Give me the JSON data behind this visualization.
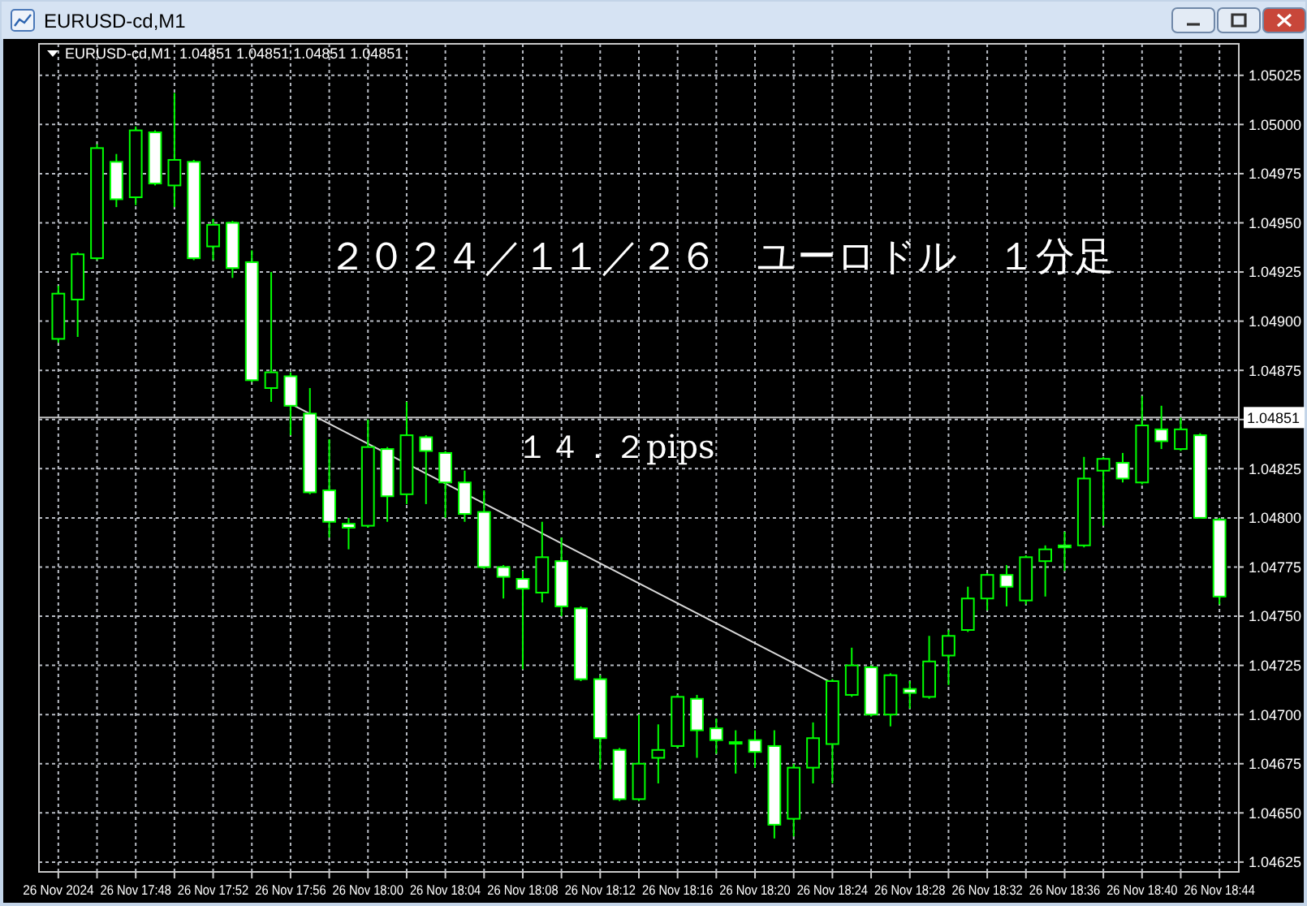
{
  "chart_data": {
    "type": "candlestick",
    "title": "２０２４／１１／２６　ユーロドル　１分足",
    "annotations": [
      "EURUSD-cd,M1",
      "EURUSD-cd,M1  1.04851 1.04851 1.04851 1.04851",
      "１４．２pips"
    ],
    "x": [
      "2024-11-26T17:44",
      "2024-11-26T17:45",
      "2024-11-26T17:46",
      "2024-11-26T17:47",
      "2024-11-26T17:48",
      "2024-11-26T17:49",
      "2024-11-26T17:50",
      "2024-11-26T17:51",
      "2024-11-26T17:52",
      "2024-11-26T17:53",
      "2024-11-26T17:54",
      "2024-11-26T17:55",
      "2024-11-26T17:56",
      "2024-11-26T17:57",
      "2024-11-26T17:58",
      "2024-11-26T17:59",
      "2024-11-26T18:00",
      "2024-11-26T18:01",
      "2024-11-26T18:02",
      "2024-11-26T18:03",
      "2024-11-26T18:04",
      "2024-11-26T18:05",
      "2024-11-26T18:06",
      "2024-11-26T18:07",
      "2024-11-26T18:08",
      "2024-11-26T18:09",
      "2024-11-26T18:10",
      "2024-11-26T18:11",
      "2024-11-26T18:12",
      "2024-11-26T18:13",
      "2024-11-26T18:14",
      "2024-11-26T18:15",
      "2024-11-26T18:16",
      "2024-11-26T18:17",
      "2024-11-26T18:18",
      "2024-11-26T18:19",
      "2024-11-26T18:20",
      "2024-11-26T18:21",
      "2024-11-26T18:22",
      "2024-11-26T18:23",
      "2024-11-26T18:24",
      "2024-11-26T18:25",
      "2024-11-26T18:26",
      "2024-11-26T18:27",
      "2024-11-26T18:28",
      "2024-11-26T18:29",
      "2024-11-26T18:30",
      "2024-11-26T18:31",
      "2024-11-26T18:32",
      "2024-11-26T18:33",
      "2024-11-26T18:34",
      "2024-11-26T18:35",
      "2024-11-26T18:36",
      "2024-11-26T18:37",
      "2024-11-26T18:38",
      "2024-11-26T18:39",
      "2024-11-26T18:40",
      "2024-11-26T18:41",
      "2024-11-26T18:42",
      "2024-11-26T18:43",
      "2024-11-26T18:44"
    ],
    "ohlc": [
      [
        1.04891,
        1.04918,
        1.04889,
        1.04914
      ],
      [
        1.04911,
        1.04935,
        1.04892,
        1.04934
      ],
      [
        1.04932,
        1.0499,
        1.04931,
        1.04988
      ],
      [
        1.04981,
        1.04985,
        1.04958,
        1.04962
      ],
      [
        1.04963,
        1.04999,
        1.04959,
        1.04997
      ],
      [
        1.04996,
        1.04997,
        1.04969,
        1.0497
      ],
      [
        1.04969,
        1.05016,
        1.04958,
        1.04982
      ],
      [
        1.04981,
        1.04982,
        1.04931,
        1.04932
      ],
      [
        1.04938,
        1.04952,
        1.04931,
        1.04949
      ],
      [
        1.0495,
        1.04951,
        1.04922,
        1.04927
      ],
      [
        1.0493,
        1.04936,
        1.04869,
        1.0487
      ],
      [
        1.04866,
        1.04925,
        1.04859,
        1.04874
      ],
      [
        1.04872,
        1.04874,
        1.04842,
        1.04857
      ],
      [
        1.04853,
        1.04866,
        1.04812,
        1.04813
      ],
      [
        1.04814,
        1.0484,
        1.0479,
        1.04798
      ],
      [
        1.04797,
        1.048,
        1.04784,
        1.04795
      ],
      [
        1.04796,
        1.0485,
        1.04795,
        1.04836
      ],
      [
        1.04835,
        1.04836,
        1.04798,
        1.04811
      ],
      [
        1.04812,
        1.04859,
        1.04807,
        1.04842
      ],
      [
        1.04841,
        1.04842,
        1.04807,
        1.04834
      ],
      [
        1.04833,
        1.04834,
        1.048,
        1.04818
      ],
      [
        1.04818,
        1.04824,
        1.04798,
        1.04802
      ],
      [
        1.04803,
        1.04814,
        1.04774,
        1.04775
      ],
      [
        1.04775,
        1.04776,
        1.04759,
        1.0477
      ],
      [
        1.04769,
        1.04773,
        1.04723,
        1.04764
      ],
      [
        1.04762,
        1.04798,
        1.04757,
        1.0478
      ],
      [
        1.04778,
        1.0479,
        1.0475,
        1.04755
      ],
      [
        1.04754,
        1.04755,
        1.04717,
        1.04718
      ],
      [
        1.04718,
        1.0472,
        1.04672,
        1.04688
      ],
      [
        1.04682,
        1.04683,
        1.04656,
        1.04657
      ],
      [
        1.04657,
        1.047,
        1.04656,
        1.04675
      ],
      [
        1.04678,
        1.04695,
        1.04665,
        1.04682
      ],
      [
        1.04684,
        1.0471,
        1.04683,
        1.04709
      ],
      [
        1.04708,
        1.0471,
        1.04678,
        1.04692
      ],
      [
        1.04693,
        1.04698,
        1.0468,
        1.04687
      ],
      [
        1.04686,
        1.04692,
        1.0467,
        1.04686
      ],
      [
        1.04687,
        1.04692,
        1.04673,
        1.04681
      ],
      [
        1.04684,
        1.04692,
        1.04637,
        1.04644
      ],
      [
        1.04647,
        1.04675,
        1.04638,
        1.04673
      ],
      [
        1.04673,
        1.04696,
        1.04665,
        1.04688
      ],
      [
        1.04685,
        1.04718,
        1.04665,
        1.04717
      ],
      [
        1.0471,
        1.04734,
        1.04709,
        1.04725
      ],
      [
        1.04724,
        1.04725,
        1.04699,
        1.047
      ],
      [
        1.047,
        1.04721,
        1.04694,
        1.0472
      ],
      [
        1.04713,
        1.04717,
        1.04703,
        1.04711
      ],
      [
        1.04709,
        1.0474,
        1.04708,
        1.04727
      ],
      [
        1.0473,
        1.04743,
        1.04715,
        1.0474
      ],
      [
        1.04743,
        1.04765,
        1.04742,
        1.04759
      ],
      [
        1.04759,
        1.04772,
        1.04753,
        1.04771
      ],
      [
        1.04771,
        1.04776,
        1.04755,
        1.04765
      ],
      [
        1.04758,
        1.04781,
        1.04756,
        1.0478
      ],
      [
        1.04778,
        1.04786,
        1.0476,
        1.04784
      ],
      [
        1.04786,
        1.04793,
        1.04773,
        1.04785
      ],
      [
        1.04786,
        1.04831,
        1.04785,
        1.0482
      ],
      [
        1.04824,
        1.04831,
        1.04796,
        1.0483
      ],
      [
        1.04828,
        1.04833,
        1.04818,
        1.0482
      ],
      [
        1.04818,
        1.04862,
        1.04817,
        1.04847
      ],
      [
        1.04845,
        1.04857,
        1.04835,
        1.04839
      ],
      [
        1.04835,
        1.04851,
        1.04834,
        1.04845
      ],
      [
        1.04842,
        1.04843,
        1.048,
        1.048
      ],
      [
        1.04799,
        1.048,
        1.04756,
        1.0476
      ]
    ],
    "color": "#00ff00",
    "colors": [
      "#000000",
      "#000000",
      "#000000",
      "#ffffff",
      "#000000",
      "#ffffff",
      "#000000",
      "#ffffff",
      "#000000",
      "#ffffff",
      "#ffffff",
      "#000000",
      "#ffffff",
      "#ffffff",
      "#ffffff",
      "#ffffff",
      "#000000",
      "#ffffff",
      "#000000",
      "#ffffff",
      "#ffffff",
      "#ffffff",
      "#ffffff",
      "#ffffff",
      "#ffffff",
      "#000000",
      "#ffffff",
      "#ffffff",
      "#ffffff",
      "#ffffff",
      "#000000",
      "#000000",
      "#000000",
      "#ffffff",
      "#ffffff",
      "#000000",
      "#ffffff",
      "#ffffff",
      "#000000",
      "#000000",
      "#000000",
      "#000000",
      "#ffffff",
      "#000000",
      "#ffffff",
      "#000000",
      "#000000",
      "#000000",
      "#000000",
      "#ffffff",
      "#000000",
      "#000000",
      "#ffffff",
      "#000000",
      "#000000",
      "#ffffff",
      "#000000",
      "#ffffff",
      "#000000",
      "#ffffff",
      "#ffffff"
    ],
    "series": [
      {
        "type": "line",
        "x": [
          "2024-11-26T17:56",
          "2024-11-26T18:24"
        ],
        "values": [
          1.04858,
          1.04716
        ],
        "color": "#d8d8d8"
      }
    ],
    "xlim": [
      "2024-11-26T17:43",
      "2024-11-26T18:45"
    ],
    "xticks": [
      {
        "value": "2024-11-26T17:44",
        "label": "26 Nov 2024"
      },
      {
        "value": "2024-11-26T17:46",
        "label": null
      },
      {
        "value": "2024-11-26T17:48",
        "label": "26 Nov 17:48"
      },
      {
        "value": "2024-11-26T17:50",
        "label": null
      },
      {
        "value": "2024-11-26T17:52",
        "label": "26 Nov 17:52"
      },
      {
        "value": "2024-11-26T17:54",
        "label": null
      },
      {
        "value": "2024-11-26T17:56",
        "label": "26 Nov 17:56"
      },
      {
        "value": "2024-11-26T17:58",
        "label": null
      },
      {
        "value": "2024-11-26T18:00",
        "label": "26 Nov 18:00"
      },
      {
        "value": "2024-11-26T18:02",
        "label": null
      },
      {
        "value": "2024-11-26T18:04",
        "label": "26 Nov 18:04"
      },
      {
        "value": "2024-11-26T18:06",
        "label": null
      },
      {
        "value": "2024-11-26T18:08",
        "label": "26 Nov 18:08"
      },
      {
        "value": "2024-11-26T18:10",
        "label": null
      },
      {
        "value": "2024-11-26T18:12",
        "label": "26 Nov 18:12"
      },
      {
        "value": "2024-11-26T18:14",
        "label": null
      },
      {
        "value": "2024-11-26T18:16",
        "label": "26 Nov 18:16"
      },
      {
        "value": "2024-11-26T18:18",
        "label": null
      },
      {
        "value": "2024-11-26T18:20",
        "label": "26 Nov 18:20"
      },
      {
        "value": "2024-11-26T18:22",
        "label": null
      },
      {
        "value": "2024-11-26T18:24",
        "label": "26 Nov 18:24"
      },
      {
        "value": "2024-11-26T18:26",
        "label": null
      },
      {
        "value": "2024-11-26T18:28",
        "label": "26 Nov 18:28"
      },
      {
        "value": "2024-11-26T18:30",
        "label": null
      },
      {
        "value": "2024-11-26T18:32",
        "label": "26 Nov 18:32"
      },
      {
        "value": "2024-11-26T18:34",
        "label": null
      },
      {
        "value": "2024-11-26T18:36",
        "label": "26 Nov 18:36"
      },
      {
        "value": "2024-11-26T18:38",
        "label": null
      },
      {
        "value": "2024-11-26T18:40",
        "label": "26 Nov 18:40"
      },
      {
        "value": "2024-11-26T18:42",
        "label": null
      },
      {
        "value": "2024-11-26T18:44",
        "label": "26 Nov 18:44"
      }
    ],
    "ylim": [
      1.0462,
      1.05041
    ],
    "yticks": [
      1.04625,
      {
        "value": 1.0465,
        "label": "1.04650"
      },
      1.04675,
      {
        "value": 1.047,
        "label": "1.04700"
      },
      1.04725,
      {
        "value": 1.0475,
        "label": "1.04750"
      },
      1.04775,
      {
        "value": 1.048,
        "label": "1.04800"
      },
      1.04825,
      {
        "value": 1.0485,
        "label": null
      },
      1.04875,
      {
        "value": 1.049,
        "label": "1.04900"
      },
      1.04925,
      {
        "value": 1.0495,
        "label": "1.04950"
      },
      1.04975,
      {
        "value": 1.05,
        "label": "1.05000"
      },
      1.05025
    ],
    "ref_lines": [
      {
        "axis": "y",
        "value": 1.04851,
        "label": "1.04851",
        "color": "#c0c0c0"
      }
    ],
    "grid": true
  }
}
